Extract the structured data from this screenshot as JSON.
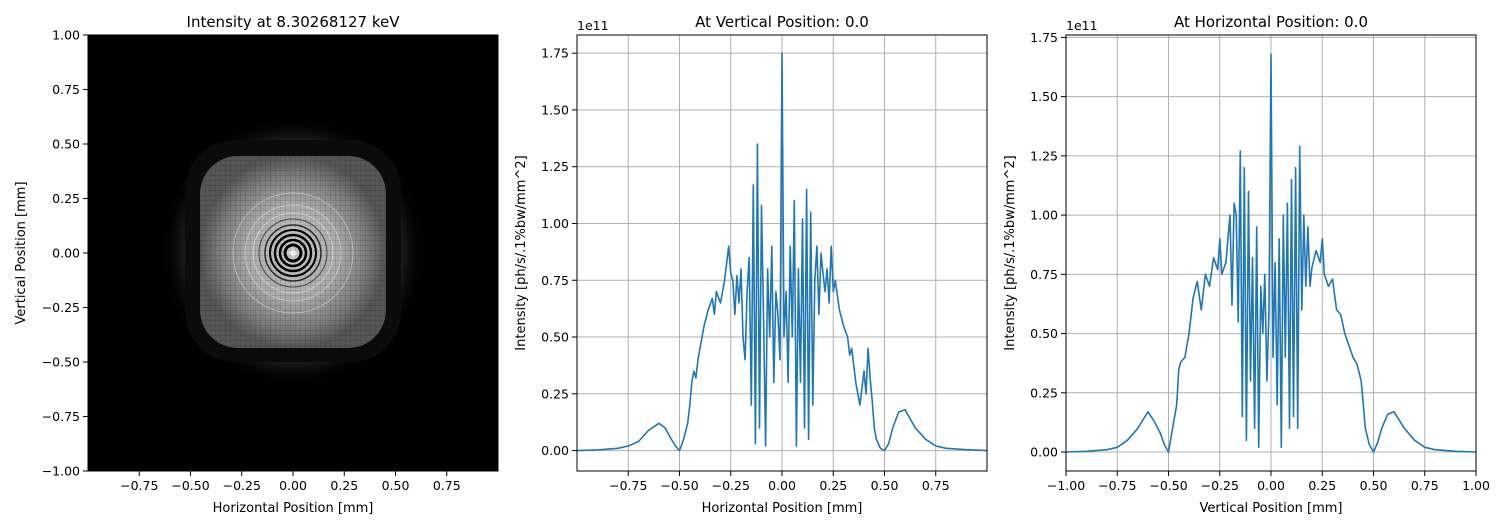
{
  "chart_data": [
    {
      "type": "heatmap",
      "title": "Intensity at 8.30268127 keV",
      "xlabel": "Horizontal Position [mm]",
      "ylabel": "Vertical Position [mm]",
      "xlim": [
        -1.0,
        1.0
      ],
      "ylim": [
        -1.0,
        1.0
      ],
      "xticks": [
        "−0.75",
        "−0.50",
        "−0.25",
        "0.00",
        "0.25",
        "0.50",
        "0.75"
      ],
      "yticks": [
        "−1.00",
        "−0.75",
        "−0.50",
        "−0.25",
        "0.00",
        "0.25",
        "0.50",
        "0.75",
        "1.00"
      ],
      "colormap": "gray",
      "grid": false
    },
    {
      "type": "line",
      "title": "At Vertical Position: 0.0",
      "xlabel": "Horizontal Position [mm]",
      "ylabel": "Intensity [ph/s/.1%bw/mm^2]",
      "offset_label": "1e11",
      "xlim": [
        -1.0,
        1.0
      ],
      "ylim": [
        -0.09,
        1.83
      ],
      "xticks": [
        "−0.75",
        "−0.50",
        "−0.25",
        "0.00",
        "0.25",
        "0.50",
        "0.75"
      ],
      "yticks": [
        "0.00",
        "0.25",
        "0.50",
        "0.75",
        "1.00",
        "1.25",
        "1.50",
        "1.75"
      ],
      "grid": true,
      "color": "#1f77b4",
      "x": [
        -1.0,
        -0.9,
        -0.8,
        -0.75,
        -0.7,
        -0.65,
        -0.6,
        -0.57,
        -0.54,
        -0.52,
        -0.5,
        -0.48,
        -0.46,
        -0.45,
        -0.44,
        -0.43,
        -0.42,
        -0.41,
        -0.4,
        -0.38,
        -0.36,
        -0.34,
        -0.33,
        -0.32,
        -0.3,
        -0.28,
        -0.26,
        -0.25,
        -0.24,
        -0.23,
        -0.22,
        -0.21,
        -0.2,
        -0.19,
        -0.18,
        -0.17,
        -0.16,
        -0.15,
        -0.14,
        -0.13,
        -0.12,
        -0.11,
        -0.1,
        -0.09,
        -0.08,
        -0.07,
        -0.06,
        -0.05,
        -0.04,
        -0.03,
        -0.02,
        -0.01,
        0.0,
        0.01,
        0.02,
        0.03,
        0.04,
        0.05,
        0.06,
        0.07,
        0.08,
        0.09,
        0.1,
        0.11,
        0.12,
        0.13,
        0.14,
        0.15,
        0.16,
        0.17,
        0.18,
        0.19,
        0.2,
        0.21,
        0.22,
        0.23,
        0.24,
        0.25,
        0.26,
        0.28,
        0.3,
        0.32,
        0.33,
        0.34,
        0.36,
        0.38,
        0.4,
        0.41,
        0.42,
        0.43,
        0.44,
        0.45,
        0.46,
        0.48,
        0.5,
        0.52,
        0.54,
        0.57,
        0.6,
        0.65,
        0.7,
        0.75,
        0.8,
        0.9,
        1.0
      ],
      "y": [
        0.0,
        0.003,
        0.01,
        0.02,
        0.04,
        0.09,
        0.12,
        0.1,
        0.05,
        0.02,
        0.0,
        0.05,
        0.12,
        0.2,
        0.3,
        0.35,
        0.32,
        0.4,
        0.45,
        0.55,
        0.62,
        0.67,
        0.6,
        0.7,
        0.65,
        0.75,
        0.9,
        0.78,
        0.75,
        0.6,
        0.77,
        0.65,
        0.8,
        0.5,
        0.4,
        0.7,
        0.85,
        0.2,
        1.17,
        0.03,
        1.35,
        0.1,
        1.08,
        0.6,
        0.02,
        0.8,
        0.5,
        0.9,
        0.3,
        0.7,
        0.6,
        0.4,
        1.75,
        0.5,
        0.7,
        0.3,
        0.9,
        0.5,
        1.1,
        0.02,
        0.8,
        0.3,
        1.02,
        0.1,
        1.15,
        0.05,
        1.05,
        0.2,
        0.75,
        0.9,
        0.6,
        0.87,
        0.78,
        0.7,
        0.8,
        0.65,
        0.9,
        0.7,
        0.75,
        0.62,
        0.55,
        0.5,
        0.42,
        0.45,
        0.3,
        0.2,
        0.35,
        0.25,
        0.45,
        0.32,
        0.22,
        0.1,
        0.05,
        0.01,
        0.0,
        0.03,
        0.1,
        0.17,
        0.18,
        0.1,
        0.05,
        0.02,
        0.01,
        0.004,
        0.0
      ]
    },
    {
      "type": "line",
      "title": "At Horizontal Position: 0.0",
      "xlabel": "Vertical Position [mm]",
      "ylabel": "Intensity [ph/s/.1%bw/mm^2]",
      "offset_label": "1e11",
      "xlim": [
        -1.0,
        1.0
      ],
      "ylim": [
        -0.08,
        1.76
      ],
      "xticks": [
        "−1.00",
        "−0.75",
        "−0.50",
        "−0.25",
        "0.00",
        "0.25",
        "0.50",
        "0.75",
        "1.00"
      ],
      "yticks": [
        "0.00",
        "0.25",
        "0.50",
        "0.75",
        "1.00",
        "1.25",
        "1.50",
        "1.75"
      ],
      "grid": true,
      "color": "#1f77b4",
      "x": [
        -1.0,
        -0.9,
        -0.8,
        -0.75,
        -0.7,
        -0.65,
        -0.6,
        -0.57,
        -0.54,
        -0.52,
        -0.5,
        -0.48,
        -0.46,
        -0.45,
        -0.44,
        -0.42,
        -0.4,
        -0.38,
        -0.36,
        -0.34,
        -0.32,
        -0.3,
        -0.28,
        -0.26,
        -0.25,
        -0.24,
        -0.22,
        -0.2,
        -0.19,
        -0.18,
        -0.17,
        -0.16,
        -0.15,
        -0.14,
        -0.13,
        -0.12,
        -0.11,
        -0.1,
        -0.09,
        -0.08,
        -0.07,
        -0.06,
        -0.05,
        -0.04,
        -0.03,
        -0.02,
        -0.01,
        0.0,
        0.01,
        0.02,
        0.03,
        0.04,
        0.05,
        0.06,
        0.07,
        0.08,
        0.09,
        0.1,
        0.11,
        0.12,
        0.13,
        0.14,
        0.15,
        0.16,
        0.17,
        0.18,
        0.19,
        0.2,
        0.22,
        0.24,
        0.25,
        0.26,
        0.28,
        0.3,
        0.32,
        0.34,
        0.36,
        0.38,
        0.4,
        0.42,
        0.44,
        0.45,
        0.46,
        0.48,
        0.5,
        0.52,
        0.54,
        0.57,
        0.6,
        0.65,
        0.7,
        0.75,
        0.8,
        0.9,
        1.0
      ],
      "y": [
        0.0,
        0.003,
        0.01,
        0.02,
        0.05,
        0.1,
        0.17,
        0.13,
        0.08,
        0.03,
        0.0,
        0.1,
        0.2,
        0.35,
        0.38,
        0.4,
        0.5,
        0.65,
        0.72,
        0.6,
        0.75,
        0.7,
        0.82,
        0.77,
        0.9,
        0.75,
        0.8,
        1.0,
        0.62,
        1.05,
        1.0,
        0.55,
        1.27,
        0.15,
        1.2,
        0.05,
        1.1,
        0.3,
        0.82,
        0.1,
        0.95,
        0.02,
        0.7,
        0.5,
        0.75,
        0.3,
        0.6,
        1.68,
        0.4,
        0.8,
        0.2,
        0.9,
        0.02,
        1.0,
        0.4,
        1.05,
        0.1,
        1.15,
        0.15,
        1.2,
        0.1,
        1.29,
        0.6,
        1.0,
        0.7,
        0.95,
        0.7,
        0.78,
        0.85,
        0.8,
        0.9,
        0.75,
        0.7,
        0.73,
        0.6,
        0.58,
        0.5,
        0.45,
        0.4,
        0.37,
        0.3,
        0.2,
        0.1,
        0.03,
        0.0,
        0.04,
        0.1,
        0.16,
        0.17,
        0.1,
        0.05,
        0.02,
        0.01,
        0.003,
        0.0
      ]
    }
  ]
}
